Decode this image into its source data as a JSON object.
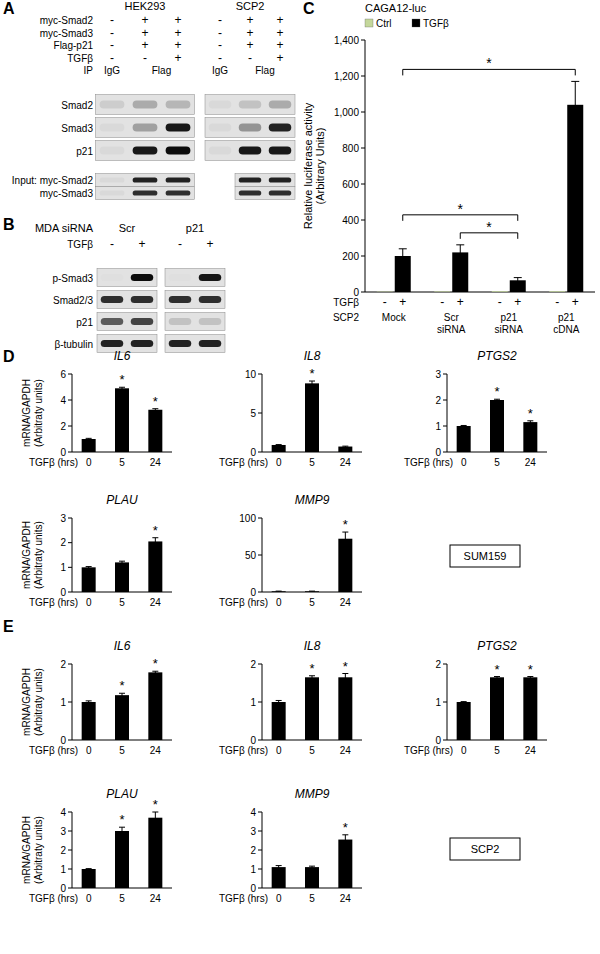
{
  "chart_data": [
    {
      "type": "blot",
      "panel": "A",
      "groups": [
        "HEK293",
        "SCP2"
      ],
      "conditions": [
        {
          "label": "myc-Smad2",
          "values": [
            [
              "-",
              "+",
              "+"
            ],
            [
              "-",
              "+",
              "+"
            ]
          ]
        },
        {
          "label": "myc-Smad3",
          "values": [
            [
              "-",
              "+",
              "+"
            ],
            [
              "-",
              "+",
              "+"
            ]
          ]
        },
        {
          "label": "Flag-p21",
          "values": [
            [
              "-",
              "+",
              "+"
            ],
            [
              "-",
              "+",
              "+"
            ]
          ]
        },
        {
          "label": "TGFβ",
          "values": [
            [
              "-",
              "-",
              "+"
            ],
            [
              "-",
              "-",
              "+"
            ]
          ]
        }
      ],
      "ip": {
        "label": "IP",
        "values": [
          [
            "IgG",
            "Flag"
          ],
          [
            "IgG",
            "Flag"
          ]
        ]
      },
      "rows": [
        {
          "label": "Smad2",
          "bands": [
            [
              0.1,
              0.25,
              0.2
            ],
            [
              0.05,
              0.15,
              0.25
            ]
          ]
        },
        {
          "label": "Smad3",
          "bands": [
            [
              0.05,
              0.3,
              0.9
            ],
            [
              0.05,
              0.35,
              0.85
            ]
          ]
        },
        {
          "label": "p21",
          "bands": [
            [
              0.05,
              0.9,
              0.95
            ],
            [
              0.05,
              0.9,
              0.9
            ]
          ]
        }
      ],
      "input_rows": [
        {
          "label": "Input: myc-Smad2",
          "bands": [
            [
              0.05,
              0.85,
              0.85
            ],
            [
              null,
              0.85,
              0.85
            ]
          ]
        },
        {
          "label": "myc-Smad3",
          "bands": [
            [
              0.05,
              0.8,
              0.8
            ],
            [
              null,
              0.8,
              0.8
            ]
          ]
        }
      ]
    },
    {
      "type": "blot",
      "panel": "B",
      "title": "MDA siRNA",
      "groups": [
        "Scr",
        "p21"
      ],
      "conditions": [
        {
          "label": "TGFβ",
          "values": [
            [
              "-",
              "+"
            ],
            [
              "-",
              "+"
            ]
          ]
        }
      ],
      "rows": [
        {
          "label": "p-Smad3",
          "bands": [
            [
              0.02,
              0.95
            ],
            [
              0.02,
              0.9
            ]
          ]
        },
        {
          "label": "Smad2/3",
          "bands": [
            [
              0.8,
              0.8
            ],
            [
              0.8,
              0.8
            ]
          ]
        },
        {
          "label": "p21",
          "bands": [
            [
              0.6,
              0.7
            ],
            [
              0.15,
              0.15
            ]
          ]
        },
        {
          "label": "β-tubulin",
          "bands": [
            [
              0.85,
              0.85
            ],
            [
              0.85,
              0.85
            ]
          ]
        }
      ]
    },
    {
      "type": "bar",
      "panel": "C",
      "title": "CAGA12-luc",
      "y_label": "Relative luciferase activity (Arbitrary Units)",
      "categories": [
        "Mock",
        "Scr siRNA",
        "p21 siRNA",
        "p21 cDNA"
      ],
      "group_label": "SCP2",
      "treatment_label": "TGFβ",
      "treatment": [
        "-",
        "+"
      ],
      "series": [
        {
          "name": "Ctrl",
          "color": "#c4d79b",
          "values": [
            2,
            3,
            4,
            4
          ]
        },
        {
          "name": "TGFβ",
          "color": "#000000",
          "values": [
            200,
            220,
            65,
            1040
          ],
          "errors": [
            40,
            42,
            15,
            130
          ]
        }
      ],
      "ylim": [
        0,
        1400
      ],
      "yticks": [
        0,
        200,
        400,
        600,
        800,
        {
          "value": 1000,
          "label": "1,000"
        },
        {
          "value": 1200,
          "label": "1,200"
        },
        {
          "value": 1400,
          "label": "1,400"
        }
      ],
      "legend": "top",
      "comparisons": [
        {
          "between": [
            [
              0,
              1
            ],
            [
              3,
              1
            ]
          ],
          "text": "*"
        },
        {
          "between": [
            [
              0,
              1
            ],
            [
              2,
              1
            ]
          ],
          "text": "*"
        },
        {
          "between": [
            [
              1,
              1
            ],
            [
              2,
              1
            ]
          ],
          "text": "*"
        }
      ]
    },
    {
      "type": "bar",
      "panel": "D",
      "label": "SUM159",
      "color": "#000000",
      "y_label": "mRNA/GAPDH (Arbitraty units)",
      "x_label": "TGFβ (hrs)",
      "charts": [
        {
          "title": "IL6",
          "categories": [
            "0",
            "5",
            "24"
          ],
          "values": [
            1,
            4.9,
            3.25
          ],
          "errors": [
            0.05,
            0.08,
            0.08
          ],
          "significance": [
            null,
            "*",
            "*"
          ],
          "ylim": [
            0,
            6
          ],
          "yticks": [
            0,
            2,
            4,
            6
          ]
        },
        {
          "title": "IL8",
          "categories": [
            "0",
            "5",
            "24"
          ],
          "values": [
            0.9,
            8.8,
            0.7
          ],
          "errors": [
            0.05,
            0.3,
            0.05
          ],
          "significance": [
            null,
            "*",
            null
          ],
          "ylim": [
            0,
            10
          ],
          "yticks": [
            0,
            5,
            10
          ]
        },
        {
          "title": "PTGS2",
          "categories": [
            "0",
            "5",
            "24"
          ],
          "values": [
            1,
            2.0,
            1.15
          ],
          "errors": [
            0.02,
            0.03,
            0.05
          ],
          "significance": [
            null,
            "*",
            "*"
          ],
          "ylim": [
            0,
            3
          ],
          "yticks": [
            0,
            1,
            2,
            3
          ]
        },
        {
          "title": "PLAU",
          "categories": [
            "0",
            "5",
            "24"
          ],
          "values": [
            1,
            1.2,
            2.05
          ],
          "errors": [
            0.03,
            0.05,
            0.15
          ],
          "significance": [
            null,
            null,
            "*"
          ],
          "ylim": [
            0,
            3
          ],
          "yticks": [
            0,
            1,
            2,
            3
          ]
        },
        {
          "title": "MMP9",
          "categories": [
            "0",
            "5",
            "24"
          ],
          "values": [
            1,
            1,
            72
          ],
          "errors": [
            0.2,
            0.2,
            9
          ],
          "significance": [
            null,
            null,
            "*"
          ],
          "ylim": [
            0,
            100
          ],
          "yticks": [
            0,
            50,
            100
          ]
        }
      ]
    },
    {
      "type": "bar",
      "panel": "E",
      "label": "SCP2",
      "color": "#000000",
      "y_label": "mRNA/GAPDH (Arbitraty units)",
      "x_label": "TGFβ (hrs)",
      "charts": [
        {
          "title": "IL6",
          "categories": [
            "0",
            "5",
            "24"
          ],
          "values": [
            1,
            1.18,
            1.78
          ],
          "errors": [
            0.03,
            0.05,
            0.03
          ],
          "significance": [
            null,
            "*",
            "*"
          ],
          "ylim": [
            0,
            2
          ],
          "yticks": [
            0,
            1,
            2
          ]
        },
        {
          "title": "IL8",
          "categories": [
            "0",
            "5",
            "24"
          ],
          "values": [
            1,
            1.65,
            1.65
          ],
          "errors": [
            0.04,
            0.04,
            0.1
          ],
          "significance": [
            null,
            "*",
            "*"
          ],
          "ylim": [
            0,
            2
          ],
          "yticks": [
            0,
            1,
            2
          ]
        },
        {
          "title": "PTGS2",
          "categories": [
            "0",
            "5",
            "24"
          ],
          "values": [
            1,
            1.65,
            1.65
          ],
          "errors": [
            0.01,
            0.02,
            0.02
          ],
          "significance": [
            null,
            "*",
            "*"
          ],
          "ylim": [
            0,
            2
          ],
          "yticks": [
            0,
            1,
            2
          ]
        },
        {
          "title": "PLAU",
          "categories": [
            "0",
            "5",
            "24"
          ],
          "values": [
            1,
            3.0,
            3.7
          ],
          "errors": [
            0.02,
            0.2,
            0.3
          ],
          "significance": [
            null,
            "*",
            "*"
          ],
          "ylim": [
            0,
            4
          ],
          "yticks": [
            0,
            1,
            2,
            3,
            4
          ]
        },
        {
          "title": "MMP9",
          "categories": [
            "0",
            "5",
            "24"
          ],
          "values": [
            1.1,
            1.1,
            2.55
          ],
          "errors": [
            0.08,
            0.05,
            0.25
          ],
          "significance": [
            null,
            null,
            "*"
          ],
          "ylim": [
            0,
            4
          ],
          "yticks": [
            0,
            1,
            2,
            3,
            4
          ]
        }
      ]
    }
  ]
}
